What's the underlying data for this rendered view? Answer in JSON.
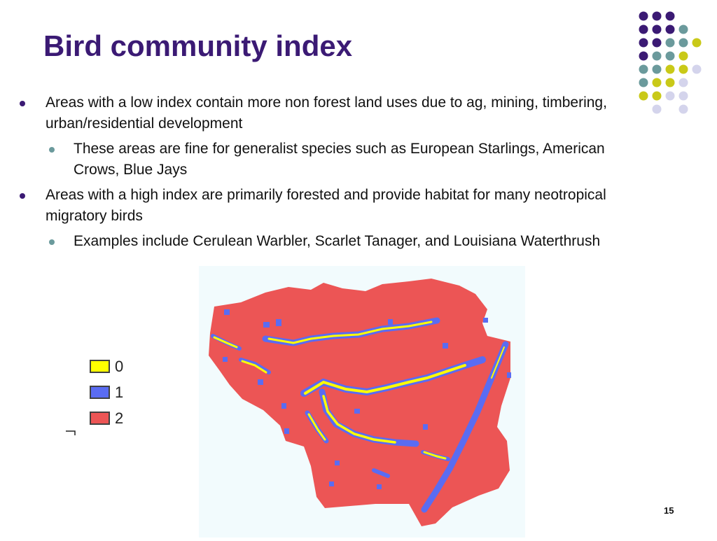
{
  "slide": {
    "title": "Bird community index",
    "page_number": "15",
    "bullets": [
      {
        "text": "Areas with a low index contain more non forest land uses due to ag, mining, timbering, urban/residential development",
        "sub": [
          "These areas are fine for generalist species such as European Starlings, American Crows, Blue Jays"
        ]
      },
      {
        "text": "Areas with a high index are primarily forested and provide habitat for many neotropical migratory birds",
        "sub": [
          "Examples include Cerulean Warbler, Scarlet Tanager, and Louisiana Waterthrush"
        ]
      }
    ]
  },
  "legend": [
    {
      "label": "0",
      "color": "#ffff00"
    },
    {
      "label": "1",
      "color": "#5a6cf2"
    },
    {
      "label": "2",
      "color": "#ec5555"
    }
  ],
  "colors": {
    "title": "#3b1a74",
    "dot_purple": "#3b1a74",
    "dot_teal": "#6b9a9c",
    "dot_yellow": "#c9c918",
    "dot_lavender": "#d4d4ec",
    "map_background": "#f2fbfd"
  },
  "icons": [
    "decorative-dot-grid",
    "bullet-dot",
    "sub-bullet-dot"
  ]
}
